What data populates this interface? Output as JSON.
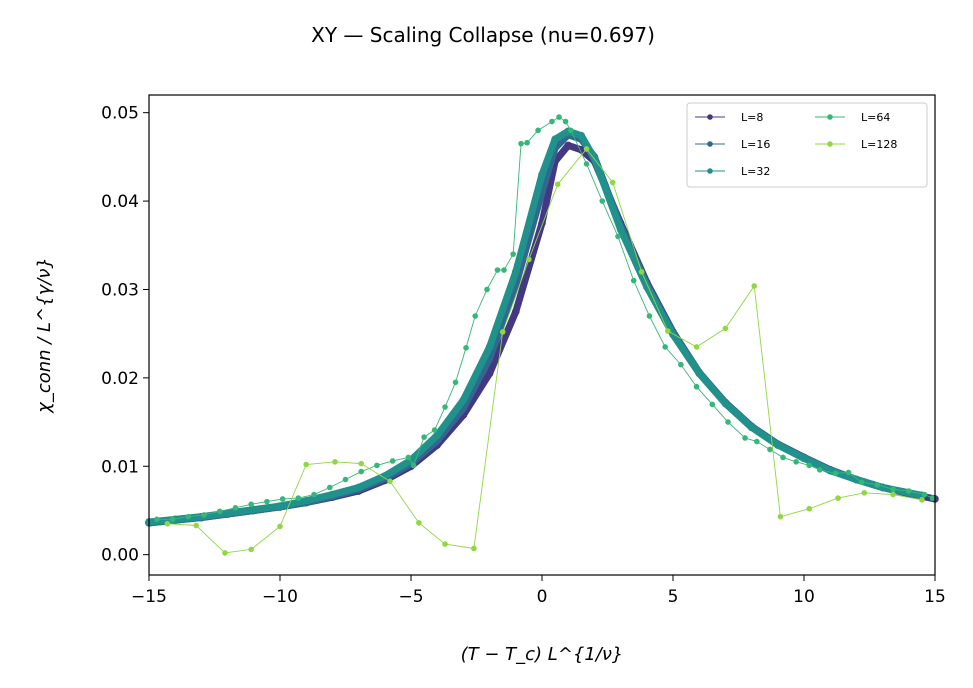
{
  "chart_data": {
    "type": "line",
    "title": "XY — Scaling Collapse (nu=0.697)",
    "xlabel": "(T − T_c) L^{1/ν}",
    "ylabel": "χ_conn / L^{γ/ν}",
    "xlim": [
      -15,
      15
    ],
    "ylim": [
      -0.0023,
      0.052
    ],
    "xticks": [
      "−15",
      "−10",
      "−5",
      "0",
      "5",
      "10",
      "15"
    ],
    "xtick_values": [
      -15,
      -10,
      -5,
      0,
      5,
      10,
      15
    ],
    "yticks": [
      "0.00",
      "0.01",
      "0.02",
      "0.03",
      "0.04",
      "0.05"
    ],
    "ytick_values": [
      0,
      0.01,
      0.02,
      0.03,
      0.04,
      0.05
    ],
    "grid": false,
    "legend": {
      "placement": "top-right",
      "columns": 2
    },
    "series": [
      {
        "name": "L=8",
        "color": "#443883",
        "dense": true,
        "x": [
          -15,
          -14,
          -13,
          -12,
          -11,
          -10,
          -9,
          -8,
          -7,
          -6,
          -5,
          -4,
          -3,
          -2,
          -1,
          0,
          0.5,
          1,
          1.5,
          2,
          3,
          4,
          5,
          6,
          7,
          8,
          9,
          10,
          11,
          12,
          13,
          14,
          15
        ],
        "y": [
          0.0036,
          0.0039,
          0.0042,
          0.0046,
          0.005,
          0.0054,
          0.0059,
          0.0065,
          0.0072,
          0.0084,
          0.01,
          0.0124,
          0.0158,
          0.0205,
          0.0275,
          0.0375,
          0.0445,
          0.0463,
          0.0458,
          0.0445,
          0.0375,
          0.0308,
          0.0252,
          0.0206,
          0.0172,
          0.0145,
          0.0125,
          0.011,
          0.0096,
          0.0085,
          0.0076,
          0.0069,
          0.0063
        ]
      },
      {
        "name": "L=16",
        "color": "#31688e",
        "dense": true,
        "x": [
          -15,
          -14,
          -13,
          -12,
          -11,
          -10,
          -9,
          -8,
          -7,
          -6,
          -5,
          -4,
          -3,
          -2,
          -1,
          0,
          0.5,
          1,
          1.5,
          2,
          3,
          4,
          5,
          6,
          7,
          8,
          9,
          10,
          11,
          12,
          13,
          14,
          14.5
        ],
        "y": [
          0.0036,
          0.0039,
          0.0042,
          0.0046,
          0.005,
          0.0054,
          0.0059,
          0.0066,
          0.0074,
          0.0086,
          0.0103,
          0.0129,
          0.0166,
          0.0222,
          0.0305,
          0.041,
          0.046,
          0.0475,
          0.047,
          0.045,
          0.0372,
          0.0306,
          0.0251,
          0.0206,
          0.0172,
          0.0145,
          0.0125,
          0.011,
          0.0096,
          0.0085,
          0.0076,
          0.007,
          0.0067
        ]
      },
      {
        "name": "L=32",
        "color": "#21918c",
        "dense": true,
        "x": [
          -15,
          -14,
          -13,
          -12,
          -11,
          -10,
          -9,
          -8,
          -7,
          -6,
          -5,
          -4,
          -3,
          -2,
          -1,
          0,
          0.5,
          1,
          1.5,
          2,
          3,
          4,
          5,
          6,
          7,
          8,
          9,
          10,
          11,
          12,
          13,
          14,
          14.5
        ],
        "y": [
          0.0037,
          0.004,
          0.0043,
          0.0047,
          0.0051,
          0.0055,
          0.0061,
          0.0068,
          0.0076,
          0.0089,
          0.0107,
          0.0135,
          0.0175,
          0.0235,
          0.032,
          0.043,
          0.047,
          0.0479,
          0.0474,
          0.0448,
          0.0368,
          0.0303,
          0.0249,
          0.0205,
          0.0171,
          0.0144,
          0.0124,
          0.0109,
          0.0095,
          0.0085,
          0.0076,
          0.007,
          0.0067
        ]
      },
      {
        "name": "L=64",
        "color": "#35b779",
        "dense": false,
        "x": [
          -14.7,
          -14.1,
          -13.5,
          -12.9,
          -12.3,
          -11.7,
          -11.1,
          -10.5,
          -9.9,
          -9.3,
          -8.7,
          -8.1,
          -7.5,
          -6.9,
          -6.3,
          -5.7,
          -5.1,
          -4.9,
          -4.5,
          -4.1,
          -3.7,
          -3.3,
          -2.9,
          -2.55,
          -2.1,
          -1.7,
          -1.45,
          -1.1,
          -0.8,
          -0.57,
          -0.15,
          0.38,
          0.65,
          0.9,
          1.1,
          1.7,
          2.3,
          2.9,
          3.5,
          4.1,
          4.7,
          5.3,
          5.9,
          6.5,
          7.1,
          7.75,
          8.2,
          8.7,
          9.2,
          9.7,
          10.2,
          10.6,
          11.2,
          11.7,
          12.2,
          12.8,
          13.4,
          14.0,
          14.6,
          14.9
        ],
        "y": [
          0.004,
          0.004,
          0.0043,
          0.0045,
          0.0049,
          0.0053,
          0.0057,
          0.006,
          0.0063,
          0.0064,
          0.0068,
          0.0076,
          0.0085,
          0.0094,
          0.0101,
          0.0106,
          0.011,
          0.0101,
          0.0133,
          0.0141,
          0.0167,
          0.0195,
          0.0234,
          0.027,
          0.03,
          0.0322,
          0.0322,
          0.034,
          0.0465,
          0.0466,
          0.048,
          0.049,
          0.0495,
          0.049,
          0.048,
          0.0442,
          0.04,
          0.036,
          0.031,
          0.027,
          0.0235,
          0.0215,
          0.019,
          0.017,
          0.015,
          0.0132,
          0.0128,
          0.0119,
          0.011,
          0.0105,
          0.0101,
          0.0096,
          0.0092,
          0.0093,
          0.0082,
          0.0079,
          0.0074,
          0.0072,
          0.0068,
          0.0064
        ]
      },
      {
        "name": "L=128",
        "color": "#90d743",
        "dense": false,
        "x": [
          -14.3,
          -13.2,
          -12.1,
          -11.1,
          -10.0,
          -9.0,
          -7.9,
          -6.9,
          -5.8,
          -4.7,
          -3.7,
          -2.6,
          -1.5,
          -0.5,
          0.6,
          1.7,
          2.7,
          3.8,
          4.8,
          5.9,
          7.0,
          8.1,
          9.1,
          10.2,
          11.3,
          12.3,
          13.4,
          14.5
        ],
        "y": [
          0.0035,
          0.0033,
          0.0002,
          0.0006,
          0.0032,
          0.0102,
          0.0105,
          0.0103,
          0.0083,
          0.0036,
          0.0012,
          0.0007,
          0.0252,
          0.0334,
          0.0419,
          0.0459,
          0.0421,
          0.032,
          0.0253,
          0.0235,
          0.0256,
          0.0304,
          0.0043,
          0.0052,
          0.0064,
          0.007,
          0.0068,
          0.0062
        ]
      }
    ]
  }
}
